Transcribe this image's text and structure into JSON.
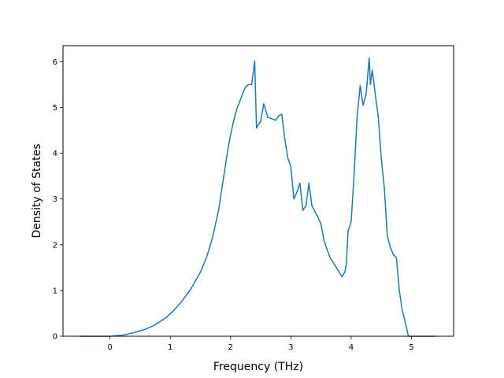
{
  "chart_data": {
    "type": "line",
    "title": "",
    "xlabel": "Frequency (THz)",
    "ylabel": "Density of States",
    "xlim": [
      -0.78,
      5.7
    ],
    "ylim": [
      0,
      6.35
    ],
    "xticks": [
      0,
      1,
      2,
      3,
      4,
      5
    ],
    "yticks": [
      0,
      1,
      2,
      3,
      4,
      5,
      6
    ],
    "grid": false,
    "line_color": "#1f77b4",
    "series": [
      {
        "x": [
          -0.5,
          0.0,
          0.2,
          0.4,
          0.6,
          0.75,
          0.9,
          1.05,
          1.2,
          1.35,
          1.5,
          1.6,
          1.7,
          1.8,
          1.9,
          1.95,
          2.0,
          2.05,
          2.1,
          2.2,
          2.25,
          2.3,
          2.35,
          2.4,
          2.43,
          2.45,
          2.5,
          2.55,
          2.58,
          2.62,
          2.65,
          2.75,
          2.8,
          2.85,
          2.9,
          2.95,
          3.0,
          3.05,
          3.1,
          3.15,
          3.2,
          3.25,
          3.3,
          3.35,
          3.4,
          3.45,
          3.5,
          3.55,
          3.6,
          3.65,
          3.7,
          3.8,
          3.85,
          3.9,
          3.92,
          3.95,
          4.0,
          4.05,
          4.1,
          4.15,
          4.18,
          4.2,
          4.25,
          4.3,
          4.32,
          4.35,
          4.4,
          4.45,
          4.5,
          4.55,
          4.6,
          4.65,
          4.7,
          4.75,
          4.8,
          4.85,
          4.9,
          4.95,
          5.0,
          5.2,
          5.4
        ],
        "y": [
          0.0,
          0.0,
          0.02,
          0.08,
          0.16,
          0.25,
          0.38,
          0.55,
          0.78,
          1.05,
          1.4,
          1.72,
          2.15,
          2.75,
          3.6,
          4.05,
          4.4,
          4.7,
          4.95,
          5.3,
          5.45,
          5.5,
          5.5,
          6.02,
          4.55,
          4.6,
          4.7,
          5.08,
          4.95,
          4.78,
          4.77,
          4.72,
          4.82,
          4.85,
          4.3,
          3.9,
          3.7,
          3.0,
          3.15,
          3.35,
          2.75,
          2.85,
          3.35,
          2.85,
          2.72,
          2.6,
          2.45,
          2.1,
          1.9,
          1.72,
          1.62,
          1.4,
          1.3,
          1.42,
          1.6,
          2.3,
          2.5,
          3.55,
          4.8,
          5.48,
          5.2,
          5.05,
          5.3,
          6.08,
          5.5,
          5.82,
          5.3,
          4.8,
          3.9,
          3.25,
          2.2,
          1.95,
          1.78,
          1.72,
          1.0,
          0.55,
          0.3,
          0.0,
          0.0,
          0.0,
          0.0
        ]
      }
    ]
  }
}
